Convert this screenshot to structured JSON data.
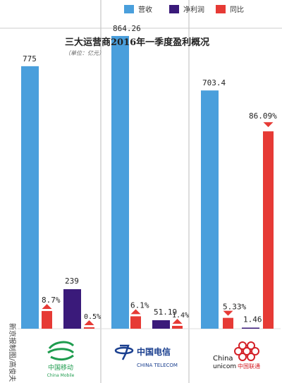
{
  "chart_data": {
    "type": "bar",
    "title": "三大运营商2016年一季度盈利概况",
    "unit": "（单位：亿元）",
    "credit": "新京报制图/高俊夫",
    "legend": [
      "营收",
      "净利润",
      "同比"
    ],
    "colors": {
      "revenue": "#4a9fdc",
      "profit": "#3a1a7a",
      "yoy": "#e63a35",
      "arrow": "#e63a35"
    },
    "series": [
      {
        "name": "营收",
        "unit": "亿元"
      },
      {
        "name": "净利润",
        "unit": "亿元"
      },
      {
        "name": "同比",
        "unit": "%"
      }
    ],
    "companies": [
      {
        "key": "mobile",
        "revenue": 775,
        "revenue_label": "775",
        "revenue_yoy": 8.7,
        "revenue_yoy_label": "8.7%",
        "revenue_yoy_dir": "up",
        "profit": 239,
        "profit_label": "239",
        "profit_yoy": 0.5,
        "profit_yoy_label": "0.5%",
        "profit_yoy_dir": "up",
        "logo_cn": "中国移动",
        "logo_en": "China Mobile"
      },
      {
        "key": "telecom",
        "revenue": 864.26,
        "revenue_label": "864.26",
        "revenue_yoy": 6.1,
        "revenue_yoy_label": "6.1%",
        "revenue_yoy_dir": "up",
        "profit": 51.19,
        "profit_label": "51.19",
        "profit_yoy": 1.4,
        "profit_yoy_label": "1.4%",
        "profit_yoy_dir": "up",
        "logo_cn": "中国电信",
        "logo_en": "CHINA TELECOM"
      },
      {
        "key": "unicom",
        "revenue": 703.4,
        "revenue_label": "703.4",
        "revenue_yoy": 5.33,
        "revenue_yoy_label": "5.33%",
        "revenue_yoy_dir": "down",
        "profit": 1.46,
        "profit_label": "1.46",
        "profit_yoy": 86.09,
        "profit_yoy_label": "86.09%",
        "profit_yoy_dir": "down",
        "logo_cn": "中国联通",
        "logo_en": "China unicom"
      }
    ]
  }
}
